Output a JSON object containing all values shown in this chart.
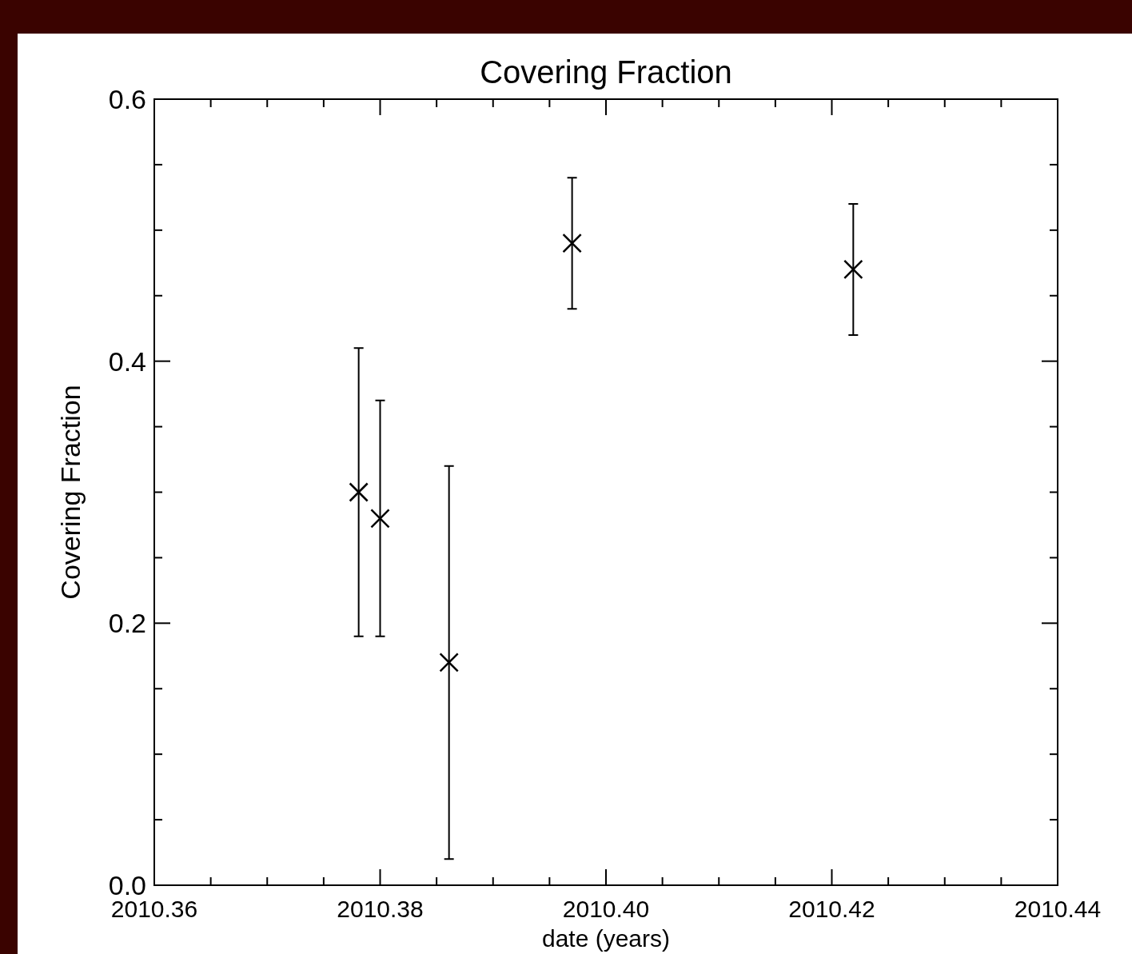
{
  "chart_data": {
    "type": "scatter",
    "title": "Covering Fraction",
    "xlabel": "date (years)",
    "ylabel": "Covering Fraction",
    "x": [
      2010.3781,
      2010.38,
      2010.3861,
      2010.397,
      2010.4219
    ],
    "series": [
      {
        "color": "#000000",
        "values": [
          0.3,
          0.28,
          0.17,
          0.49,
          0.47
        ],
        "errors": [
          [
            0.19,
            0.41
          ],
          [
            0.19,
            0.37
          ],
          [
            0.02,
            0.32
          ],
          [
            0.44,
            0.54
          ],
          [
            0.42,
            0.52
          ]
        ]
      }
    ],
    "marker": "cross",
    "grid": false,
    "xlim": [
      2010.36,
      2010.44
    ],
    "xticks": [
      {
        "value": 2010.36,
        "label": "2010.36"
      },
      {
        "value": 2010.365,
        "label": null
      },
      {
        "value": 2010.37,
        "label": null
      },
      {
        "value": 2010.375,
        "label": null
      },
      {
        "value": 2010.38,
        "label": "2010.38"
      },
      {
        "value": 2010.385,
        "label": null
      },
      {
        "value": 2010.39,
        "label": null
      },
      {
        "value": 2010.395,
        "label": null
      },
      {
        "value": 2010.4,
        "label": "2010.40"
      },
      {
        "value": 2010.405,
        "label": null
      },
      {
        "value": 2010.41,
        "label": null
      },
      {
        "value": 2010.415,
        "label": null
      },
      {
        "value": 2010.42,
        "label": "2010.42"
      },
      {
        "value": 2010.425,
        "label": null
      },
      {
        "value": 2010.43,
        "label": null
      },
      {
        "value": 2010.435,
        "label": null
      },
      {
        "value": 2010.44,
        "label": "2010.44"
      }
    ],
    "ylim": [
      0,
      0.6
    ],
    "yticks": [
      {
        "value": 0,
        "label": "0.0"
      },
      {
        "value": 0.05,
        "label": null
      },
      {
        "value": 0.1,
        "label": null
      },
      {
        "value": 0.15,
        "label": null
      },
      {
        "value": 0.2,
        "label": "0.2"
      },
      {
        "value": 0.25,
        "label": null
      },
      {
        "value": 0.3,
        "label": null
      },
      {
        "value": 0.35,
        "label": null
      },
      {
        "value": 0.4,
        "label": "0.4"
      },
      {
        "value": 0.45,
        "label": null
      },
      {
        "value": 0.5,
        "label": null
      },
      {
        "value": 0.55,
        "label": null
      },
      {
        "value": 0.6,
        "label": "0.6"
      }
    ]
  }
}
